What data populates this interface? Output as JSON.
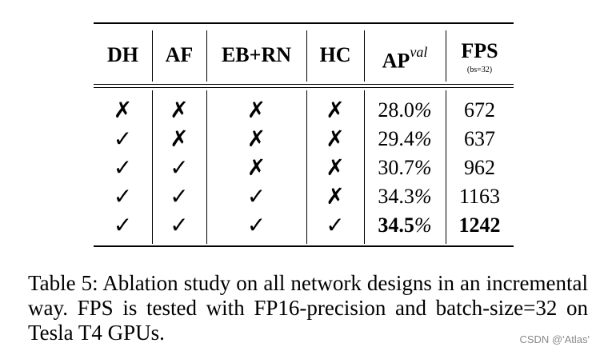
{
  "table": {
    "headers": [
      "DH",
      "AF",
      "EB+RN",
      "HC",
      "AP",
      "FPS"
    ],
    "ap_superscript": "val",
    "fps_subtitle": "(bs=32)",
    "rows": [
      {
        "dh": "✗",
        "af": "✗",
        "ebrn": "✗",
        "hc": "✗",
        "ap_value": "28.0",
        "ap_pct": "%",
        "fps": "672"
      },
      {
        "dh": "✓",
        "af": "✗",
        "ebrn": "✗",
        "hc": "✗",
        "ap_value": "29.4",
        "ap_pct": "%",
        "fps": "637"
      },
      {
        "dh": "✓",
        "af": "✓",
        "ebrn": "✗",
        "hc": "✗",
        "ap_value": "30.7",
        "ap_pct": "%",
        "fps": "962"
      },
      {
        "dh": "✓",
        "af": "✓",
        "ebrn": "✓",
        "hc": "✗",
        "ap_value": "34.3",
        "ap_pct": "%",
        "fps": "1163"
      },
      {
        "dh": "✓",
        "af": "✓",
        "ebrn": "✓",
        "hc": "✓",
        "ap_value": "34.5",
        "ap_pct": "%",
        "fps": "1242"
      }
    ]
  },
  "caption": "Table 5: Ablation study on all network designs in an incremental way. FPS is tested with FP16-precision and batch-size=32 on Tesla T4 GPUs.",
  "watermark": "CSDN @'Atlas'"
}
